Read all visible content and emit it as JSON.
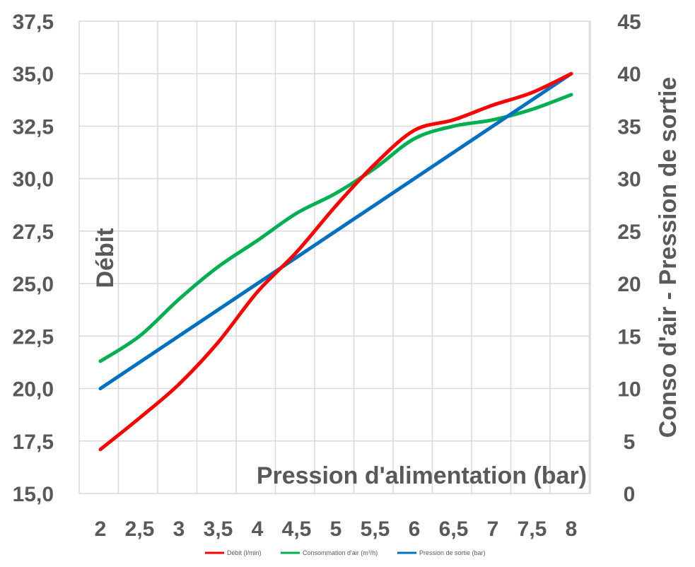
{
  "chart_data": {
    "type": "line",
    "x": [
      "2",
      "2,5",
      "3",
      "3,5",
      "4",
      "4,5",
      "5",
      "5,5",
      "6",
      "6,5",
      "7",
      "7,5",
      "8"
    ],
    "xlabel": "Pression d'alimentation (bar)",
    "ylabel": "Débit",
    "y2label": "Conso d'air - Pression de sortie",
    "ylim": [
      15,
      37.5
    ],
    "y2lim": [
      0,
      45
    ],
    "yticks": [
      "15,0",
      "17,5",
      "20,0",
      "22,5",
      "25,0",
      "27,5",
      "30,0",
      "32,5",
      "35,0",
      "37,5"
    ],
    "y2ticks": [
      "0",
      "5",
      "10",
      "15",
      "20",
      "25",
      "30",
      "35",
      "40",
      "45"
    ],
    "grid": true,
    "legend_position": "bottom",
    "series": [
      {
        "name": "Débit (l/min)",
        "axis": "left",
        "color": "#ff0000",
        "values": [
          17.1,
          18.6,
          20.2,
          22.2,
          24.6,
          26.5,
          28.7,
          30.7,
          32.3,
          32.8,
          33.5,
          34.1,
          35.0
        ]
      },
      {
        "name": "Consommation d'air (m³/h)",
        "axis": "right",
        "color": "#00b050",
        "values": [
          12.6,
          15.0,
          18.5,
          21.6,
          24.1,
          26.7,
          28.6,
          31.0,
          33.8,
          35.0,
          35.6,
          36.6,
          38.0
        ]
      },
      {
        "name": "Pression de sortie (bar)",
        "axis": "right",
        "color": "#0070c0",
        "values": [
          10.0,
          12.5,
          15.0,
          17.5,
          20.0,
          22.5,
          25.0,
          27.5,
          30.0,
          32.5,
          35.0,
          37.5,
          40.0
        ]
      }
    ]
  }
}
